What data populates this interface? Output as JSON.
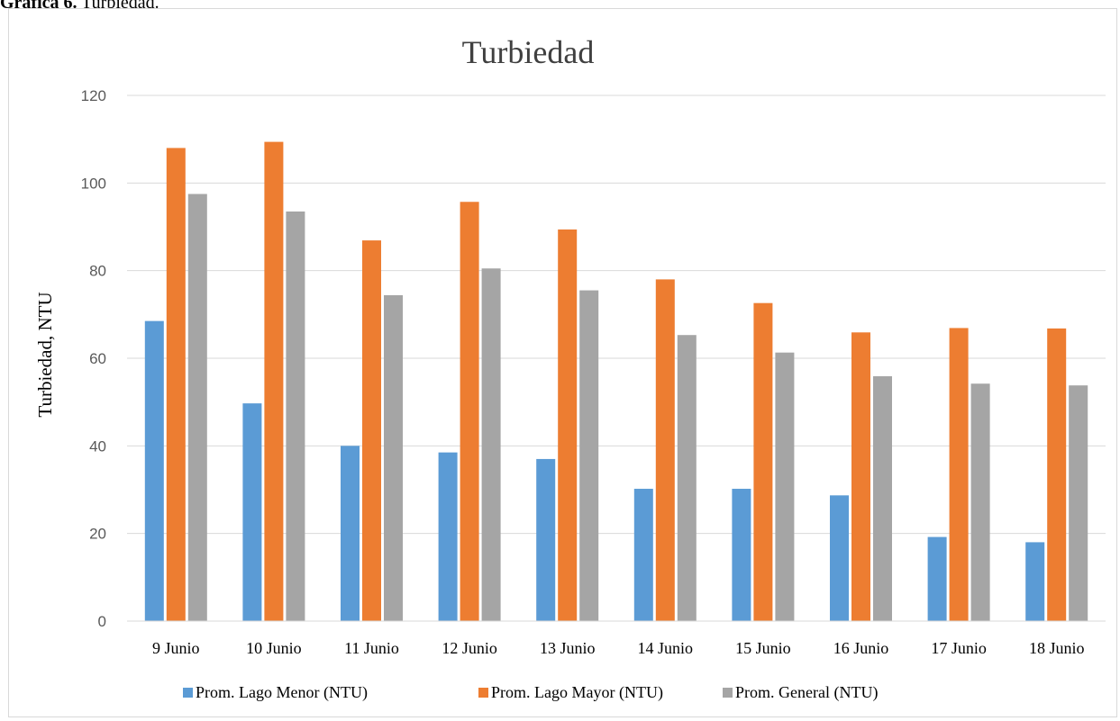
{
  "caption": {
    "prefix": "Gráfica 6.",
    "text": " Turbiedad."
  },
  "chart_data": {
    "type": "bar",
    "title": "Turbiedad",
    "xlabel": "",
    "ylabel": "Turbiedad, NTU",
    "ylim": [
      0,
      120
    ],
    "yticks": [
      0,
      20,
      40,
      60,
      80,
      100,
      120
    ],
    "grid": true,
    "legend_position": "bottom",
    "categories": [
      "9 Junio",
      "10 Junio",
      "11 Junio",
      "12 Junio",
      "13 Junio",
      "14 Junio",
      "15 Junio",
      "16 Junio",
      "17 Junio",
      "18 Junio"
    ],
    "series": [
      {
        "name": "Prom. Lago Menor (NTU)",
        "color": "#5b9bd5",
        "values": [
          68.5,
          49.7,
          40.0,
          38.5,
          37.0,
          30.2,
          30.2,
          28.7,
          19.2,
          18.0
        ]
      },
      {
        "name": "Prom. Lago Mayor (NTU)",
        "color": "#ed7d31",
        "values": [
          108.0,
          109.4,
          86.9,
          95.7,
          89.4,
          78.0,
          72.6,
          65.9,
          66.9,
          66.8
        ]
      },
      {
        "name": "Prom. General (NTU)",
        "color": "#a5a5a5",
        "values": [
          97.5,
          93.5,
          74.4,
          80.5,
          75.5,
          65.3,
          61.3,
          55.9,
          54.2,
          53.8
        ]
      }
    ]
  }
}
